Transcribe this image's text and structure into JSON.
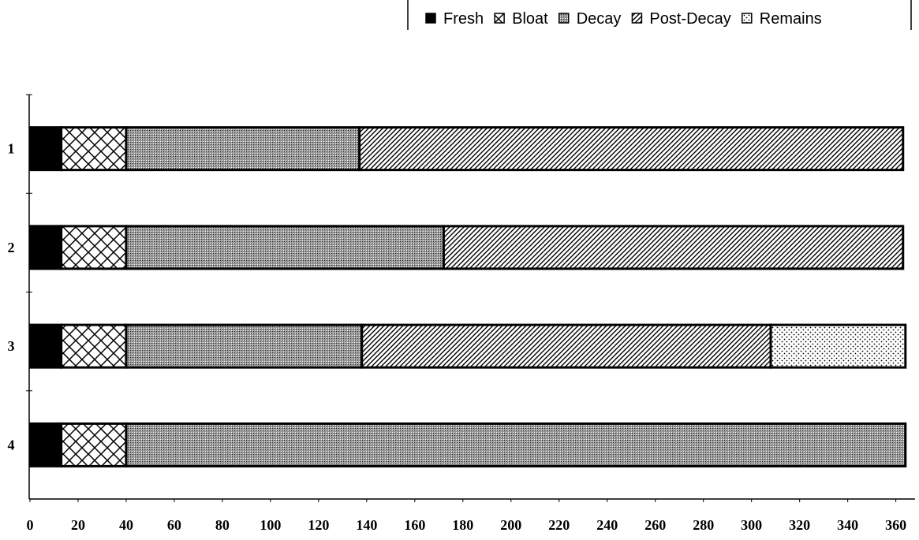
{
  "chart_data": {
    "type": "stacked-bar-horizontal",
    "categories": [
      "1",
      "2",
      "3",
      "4"
    ],
    "series": [
      {
        "name": "Fresh",
        "color": "#000000",
        "pattern": "solid",
        "values": [
          13,
          13,
          13,
          13
        ]
      },
      {
        "name": "Bloat",
        "color": "#000000",
        "pattern": "crosshatch",
        "values": [
          27,
          27,
          27,
          27
        ]
      },
      {
        "name": "Decay",
        "color": "#000000",
        "pattern": "dense",
        "values": [
          97,
          132,
          98,
          324
        ]
      },
      {
        "name": "Post-Decay",
        "color": "#000000",
        "pattern": "diagonal",
        "values": [
          226,
          191,
          170,
          0
        ]
      },
      {
        "name": "Remains",
        "color": "#000000",
        "pattern": "dots",
        "values": [
          0,
          0,
          56,
          0
        ]
      }
    ],
    "xlim": [
      0,
      368
    ],
    "xticks": [
      0,
      20,
      40,
      60,
      80,
      100,
      120,
      140,
      160,
      180,
      200,
      220,
      240,
      260,
      280,
      300,
      320,
      340,
      360
    ],
    "legend": "top-right"
  }
}
